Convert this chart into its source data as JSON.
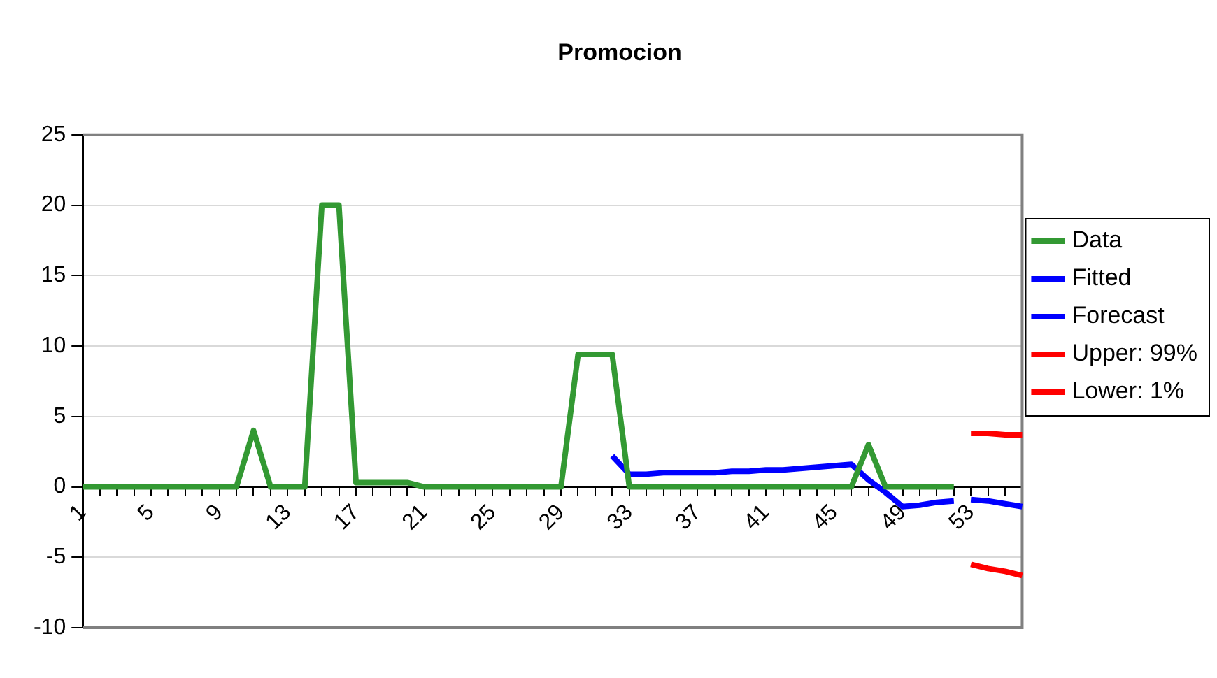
{
  "chart_data": {
    "type": "line",
    "title": "Promocion",
    "categories": [
      "1",
      null,
      null,
      null,
      "5",
      null,
      null,
      null,
      "9",
      null,
      null,
      null,
      "13",
      null,
      null,
      null,
      "17",
      null,
      null,
      null,
      "21",
      null,
      null,
      null,
      "25",
      null,
      null,
      null,
      "29",
      null,
      null,
      null,
      "33",
      null,
      null,
      null,
      "37",
      null,
      null,
      null,
      "41",
      null,
      null,
      null,
      "45",
      null,
      null,
      null,
      "49",
      null,
      null,
      null,
      "53",
      null,
      null,
      null
    ],
    "series": [
      {
        "name": "Data",
        "color": "#339933",
        "values": [
          0,
          0,
          0,
          0,
          0,
          0,
          0,
          0,
          0,
          0,
          4,
          0,
          0,
          0,
          20,
          20,
          0.3,
          0.3,
          0.3,
          0.3,
          0,
          0,
          0,
          0,
          0,
          0,
          0,
          0,
          0,
          9.4,
          9.4,
          9.4,
          0,
          0,
          0,
          0,
          0,
          0,
          0,
          0,
          0,
          0,
          0,
          0,
          0,
          0,
          3,
          0,
          0,
          0,
          0,
          0,
          null,
          null,
          null,
          null
        ]
      },
      {
        "name": "Fitted",
        "color": "#0000ff",
        "values": [
          null,
          null,
          null,
          null,
          null,
          null,
          null,
          null,
          null,
          null,
          null,
          null,
          null,
          null,
          null,
          null,
          null,
          null,
          null,
          null,
          null,
          null,
          null,
          null,
          null,
          null,
          null,
          null,
          null,
          null,
          null,
          2.2,
          0.9,
          0.9,
          1.0,
          1.0,
          1.0,
          1.0,
          1.1,
          1.1,
          1.2,
          1.2,
          1.3,
          1.4,
          1.5,
          1.6,
          0.5,
          -0.4,
          -1.4,
          -1.3,
          -1.1,
          -1.0,
          null,
          null,
          null,
          null
        ]
      },
      {
        "name": "Forecast",
        "color": "#0000ff",
        "values": [
          null,
          null,
          null,
          null,
          null,
          null,
          null,
          null,
          null,
          null,
          null,
          null,
          null,
          null,
          null,
          null,
          null,
          null,
          null,
          null,
          null,
          null,
          null,
          null,
          null,
          null,
          null,
          null,
          null,
          null,
          null,
          null,
          null,
          null,
          null,
          null,
          null,
          null,
          null,
          null,
          null,
          null,
          null,
          null,
          null,
          null,
          null,
          null,
          null,
          null,
          null,
          null,
          -0.9,
          -1.0,
          -1.2,
          -1.4
        ]
      },
      {
        "name": "Upper: 99%",
        "color": "#ff0000",
        "values": [
          null,
          null,
          null,
          null,
          null,
          null,
          null,
          null,
          null,
          null,
          null,
          null,
          null,
          null,
          null,
          null,
          null,
          null,
          null,
          null,
          null,
          null,
          null,
          null,
          null,
          null,
          null,
          null,
          null,
          null,
          null,
          null,
          null,
          null,
          null,
          null,
          null,
          null,
          null,
          null,
          null,
          null,
          null,
          null,
          null,
          null,
          null,
          null,
          null,
          null,
          null,
          null,
          3.8,
          3.8,
          3.7,
          3.7
        ]
      },
      {
        "name": "Lower: 1%",
        "color": "#ff0000",
        "values": [
          null,
          null,
          null,
          null,
          null,
          null,
          null,
          null,
          null,
          null,
          null,
          null,
          null,
          null,
          null,
          null,
          null,
          null,
          null,
          null,
          null,
          null,
          null,
          null,
          null,
          null,
          null,
          null,
          null,
          null,
          null,
          null,
          null,
          null,
          null,
          null,
          null,
          null,
          null,
          null,
          null,
          null,
          null,
          null,
          null,
          null,
          null,
          null,
          null,
          null,
          null,
          null,
          -5.5,
          -5.8,
          -6.0,
          -6.3
        ]
      }
    ],
    "ylim": [
      -10,
      25
    ],
    "yticks": [
      -10,
      -5,
      0,
      5,
      10,
      15,
      20,
      25
    ],
    "grid": "y",
    "legend": "right",
    "marker": "none",
    "line_style": "solid"
  }
}
